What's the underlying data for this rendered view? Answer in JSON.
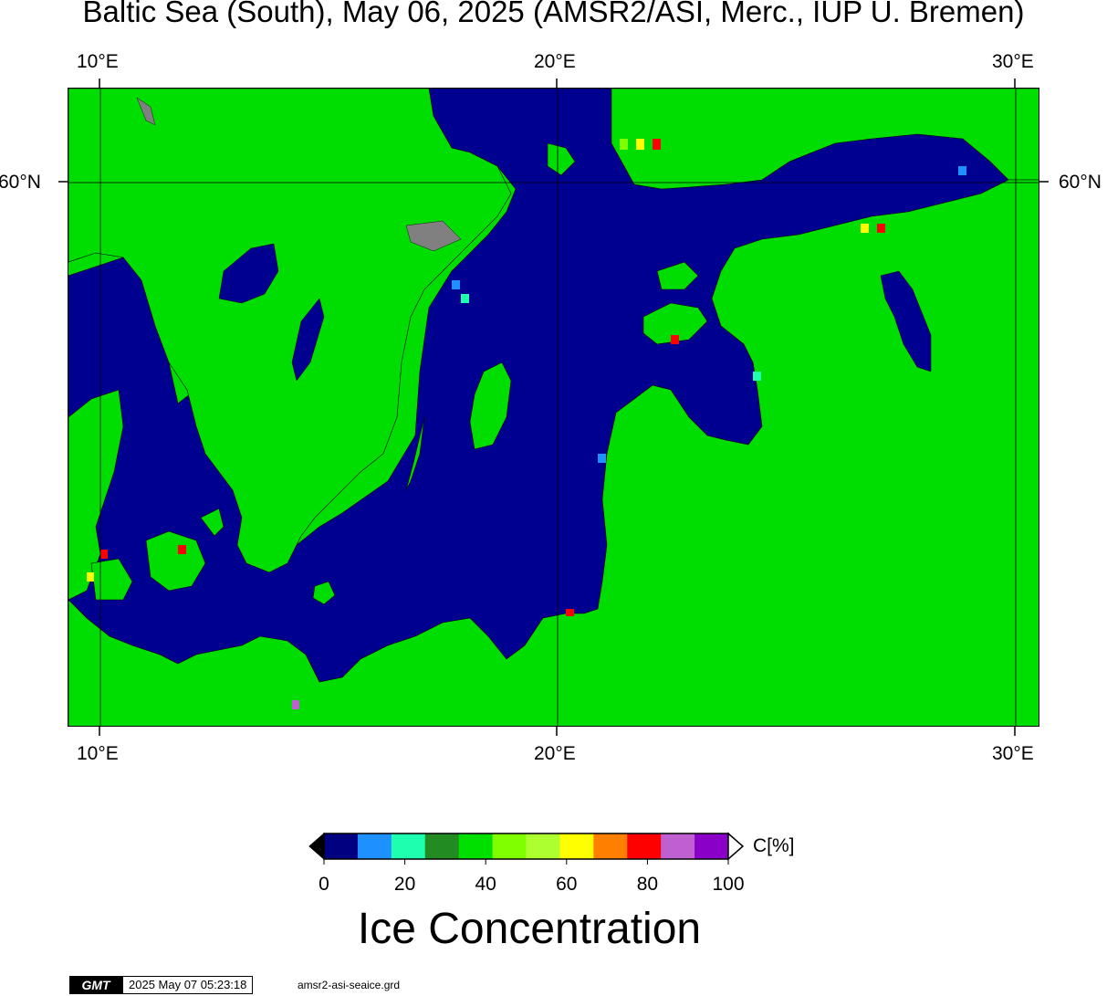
{
  "title": "Baltic Sea (South), May 06, 2025 (AMSR2/ASI, Merc., IUP U. Bremen)",
  "axes": {
    "lon_ticks": [
      "10°E",
      "20°E",
      "30°E"
    ],
    "lat_ticks": [
      "60°N"
    ]
  },
  "colorbar": {
    "unit_label": "C[%]",
    "title": "Ice Concentration",
    "ticks": [
      "0",
      "20",
      "40",
      "60",
      "80",
      "100"
    ],
    "colors": [
      "#000080",
      "#1e90ff",
      "#1effb0",
      "#228b22",
      "#00e000",
      "#7fff00",
      "#adff2f",
      "#ffff00",
      "#ff8000",
      "#ff0000",
      "#c060d0",
      "#8a00c8"
    ],
    "under_color": "#000000",
    "over_color": "#ffffff"
  },
  "colors": {
    "land": "#00dd00",
    "sea": "#000090",
    "grey_land": "#808080"
  },
  "footer": {
    "logo": "GMT",
    "timestamp": "2025 May 07 05:23:18",
    "file": "amsr2-asi-seaice.grd"
  }
}
